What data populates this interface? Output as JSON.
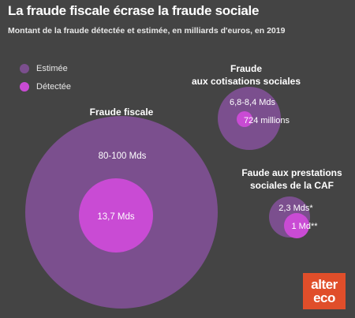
{
  "title": "La fraude fiscale écrase la fraude sociale",
  "subtitle": "Montant de la fraude détectée et estimée, en milliards d'euros, en 2019",
  "colors": {
    "background": "#444444",
    "estimee": "#7b4f8e",
    "detectee": "#c94bd4",
    "logo": "#e04e2a"
  },
  "legend": [
    {
      "label": "Estimée",
      "color": "#7b4f8e"
    },
    {
      "label": "Détectée",
      "color": "#c94bd4"
    }
  ],
  "logo": {
    "line1": "alter",
    "line2": "eco"
  },
  "chart_data": {
    "type": "bubble",
    "title": "La fraude fiscale écrase la fraude sociale",
    "subtitle": "Montant de la fraude détectée et estimée, en milliards d'euros, en 2019",
    "series": [
      {
        "name": "Estimée",
        "color": "#7b4f8e"
      },
      {
        "name": "Détectée",
        "color": "#c94bd4"
      }
    ],
    "groups": [
      {
        "name": "Fraude fiscale",
        "estimee": {
          "label": "80-100 Mds",
          "value_min": 80,
          "value_max": 100
        },
        "detectee": {
          "label": "13,7 Mds",
          "value": 13.7
        }
      },
      {
        "name": "Fraude aux cotisations sociales",
        "label_lines": [
          "Fraude",
          "aux cotisations sociales"
        ],
        "estimee": {
          "label": "6,8-8,4 Mds",
          "value_min": 6.8,
          "value_max": 8.4
        },
        "detectee": {
          "label": "724 millions",
          "value": 0.724
        }
      },
      {
        "name": "Faude aux prestations sociales de la CAF",
        "label_lines": [
          "Faude aux prestations",
          "sociales de la CAF"
        ],
        "estimee": {
          "label": "2,3 Mds*",
          "value": 2.3
        },
        "detectee": {
          "label": "1 Md**",
          "value": 1
        }
      }
    ]
  }
}
